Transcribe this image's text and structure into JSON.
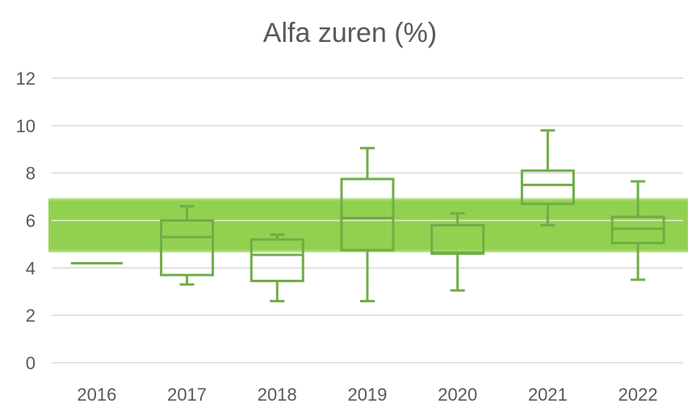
{
  "chart_data": {
    "type": "box",
    "title": "Alfa zuren (%)",
    "xlabel": "",
    "ylabel": "",
    "ylim": [
      0,
      12
    ],
    "yticks": [
      0,
      2,
      4,
      6,
      8,
      10,
      12
    ],
    "grid": true,
    "colors": {
      "box": "#70AD47",
      "band": "#92D050",
      "grid": "#D9D9D9",
      "text": "#595959"
    },
    "reference_band": {
      "low": 4.65,
      "high": 6.95
    },
    "categories": [
      "2016",
      "2017",
      "2018",
      "2019",
      "2020",
      "2021",
      "2022"
    ],
    "boxes": [
      {
        "category": "2016",
        "min": 4.2,
        "q1": 4.2,
        "median": 4.2,
        "q3": 4.2,
        "max": 4.2
      },
      {
        "category": "2017",
        "min": 3.3,
        "q1": 3.7,
        "median": 5.3,
        "q3": 6.0,
        "max": 6.6
      },
      {
        "category": "2018",
        "min": 2.6,
        "q1": 3.45,
        "median": 4.55,
        "q3": 5.2,
        "max": 5.4
      },
      {
        "category": "2019",
        "min": 2.6,
        "q1": 4.75,
        "median": 6.1,
        "q3": 7.75,
        "max": 9.05
      },
      {
        "category": "2020",
        "min": 3.05,
        "q1": 4.6,
        "median": 4.65,
        "q3": 5.8,
        "max": 6.3
      },
      {
        "category": "2021",
        "min": 5.8,
        "q1": 6.7,
        "median": 7.5,
        "q3": 8.1,
        "max": 9.8
      },
      {
        "category": "2022",
        "min": 3.5,
        "q1": 5.05,
        "median": 5.65,
        "q3": 6.15,
        "max": 7.65
      }
    ]
  }
}
